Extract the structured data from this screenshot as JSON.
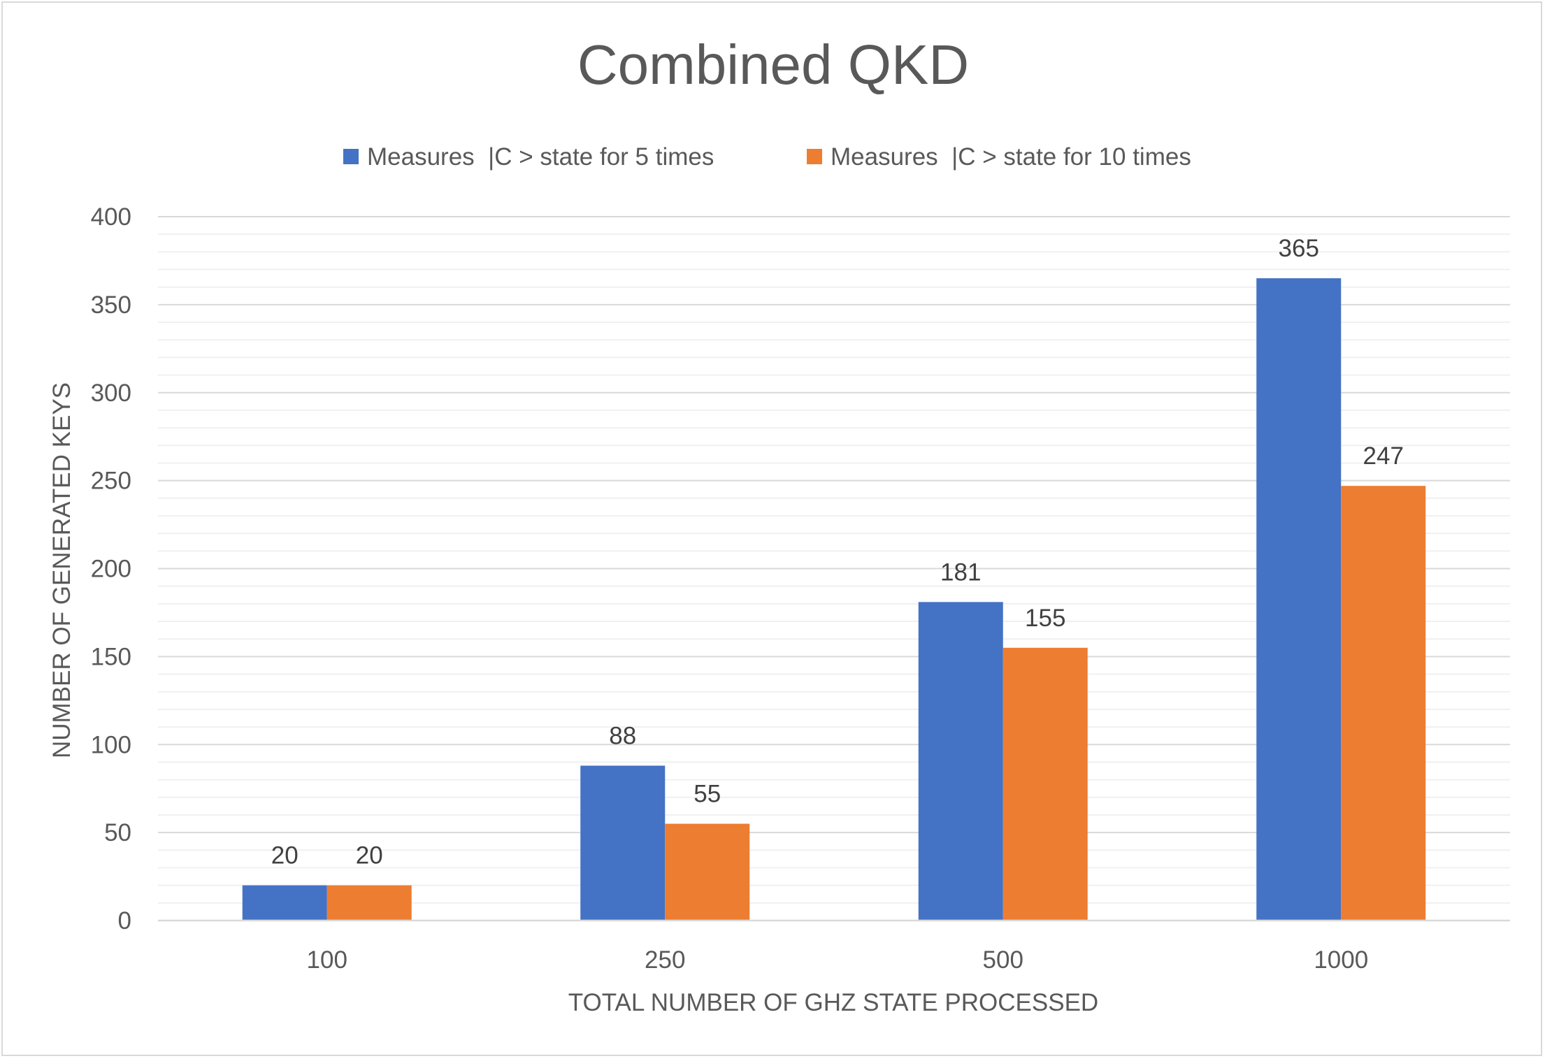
{
  "chart_data": {
    "type": "bar",
    "title": "Combined QKD",
    "xlabel": "TOTAL NUMBER OF GHZ STATE PROCESSED",
    "ylabel": "NUMBER OF GENERATED KEYS",
    "categories": [
      "100",
      "250",
      "500",
      "1000"
    ],
    "series": [
      {
        "name": "Measures  |C > state for 5 times",
        "values": [
          20,
          88,
          181,
          365
        ],
        "color": "#4472C4"
      },
      {
        "name": "Measures  |C > state for 10 times",
        "values": [
          20,
          55,
          155,
          247
        ],
        "color": "#ED7D31"
      }
    ],
    "ylim": [
      0,
      400
    ],
    "y_ticks": [
      0,
      50,
      100,
      150,
      200,
      250,
      300,
      350,
      400
    ],
    "grid": {
      "major": true,
      "minor": true
    },
    "legend_position": "top",
    "data_labels": true
  }
}
